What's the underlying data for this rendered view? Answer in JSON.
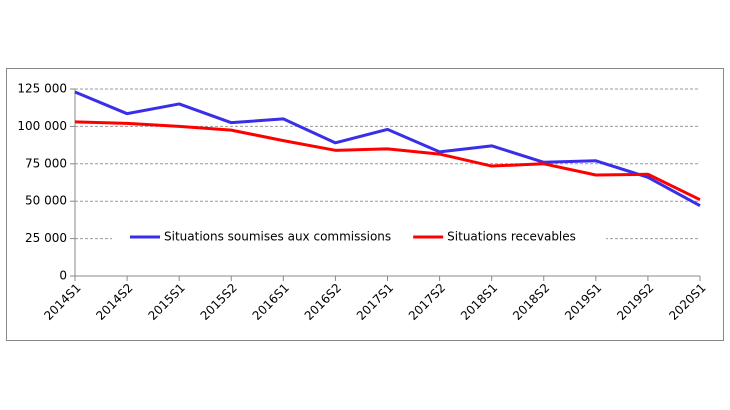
{
  "chart_data": {
    "type": "line",
    "categories": [
      "2014S1",
      "2014S2",
      "2015S1",
      "2015S2",
      "2016S1",
      "2016S2",
      "2017S1",
      "2017S2",
      "2018S1",
      "2018S2",
      "2019S1",
      "2019S2",
      "2020S1"
    ],
    "series": [
      {
        "name": "Situations soumises aux commissions",
        "color": "#3a2ee8",
        "values": [
          123000,
          108500,
          115000,
          102500,
          105000,
          89000,
          98000,
          83000,
          87000,
          76000,
          77000,
          66000,
          47000
        ]
      },
      {
        "name": "Situations recevables",
        "color": "#ff0000",
        "values": [
          103000,
          102000,
          100000,
          97500,
          90500,
          84000,
          85000,
          81500,
          73500,
          75000,
          67500,
          68000,
          51000
        ]
      }
    ],
    "ylim": [
      0,
      125000
    ],
    "yticks": [
      {
        "value": 0,
        "label": "0"
      },
      {
        "value": 25000,
        "label": "25 000"
      },
      {
        "value": 50000,
        "label": "50 000"
      },
      {
        "value": 75000,
        "label": "75 000"
      },
      {
        "value": 100000,
        "label": "100 000"
      },
      {
        "value": 125000,
        "label": "125 000"
      }
    ],
    "grid": true
  }
}
